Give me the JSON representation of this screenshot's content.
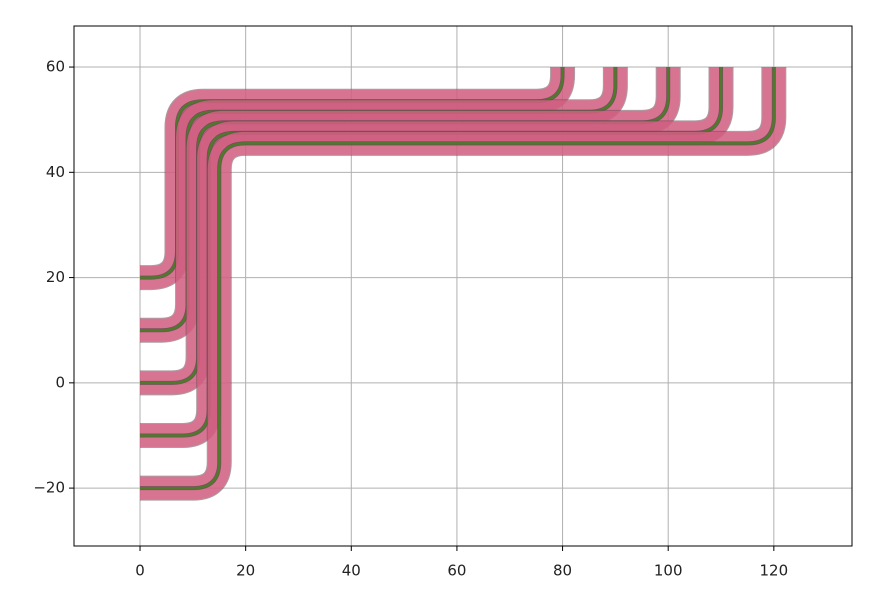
{
  "chart_data": {
    "type": "route",
    "xlim": [
      -12.5,
      134.8
    ],
    "ylim": [
      -31,
      67.8
    ],
    "xticks": [
      0,
      20,
      40,
      60,
      80,
      100,
      120
    ],
    "yticks": [
      {
        "value": -20,
        "label": "−20"
      },
      0,
      20,
      40,
      60
    ],
    "grid": true,
    "color": "#4f7a2c",
    "cladding_color": "#e8648c",
    "series": [
      {
        "x": [
          0,
          7,
          7,
          80,
          80
        ],
        "values": [
          20,
          20,
          53.5,
          53.5,
          60
        ]
      },
      {
        "x": [
          0,
          9,
          9,
          90,
          90
        ],
        "values": [
          10,
          10,
          51.5,
          51.5,
          60
        ]
      },
      {
        "x": [
          0,
          11,
          11,
          100,
          100
        ],
        "values": [
          0,
          0,
          49.5,
          49.5,
          60
        ]
      },
      {
        "x": [
          0,
          13,
          13,
          110,
          110
        ],
        "values": [
          -10,
          -10,
          47.5,
          47.5,
          60
        ]
      },
      {
        "x": [
          0,
          15,
          15,
          120,
          120
        ],
        "values": [
          -20,
          -20,
          45.5,
          45.5,
          60
        ]
      }
    ]
  }
}
